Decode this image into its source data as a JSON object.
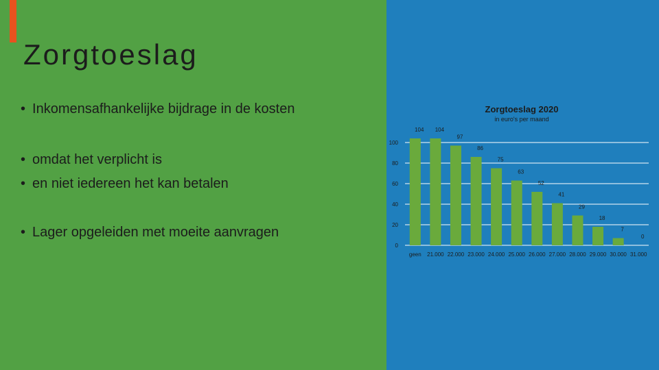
{
  "slide": {
    "title": "Zorgtoeslag",
    "bullets": [
      "Inkomensafhankelijke bijdrage in de kosten",
      "omdat het verplicht is",
      "en niet iedereen het kan betalen",
      "Lager opgeleiden met moeite aanvragen"
    ]
  },
  "colors": {
    "left_bg": "#52a144",
    "right_bg": "#1f7fbd",
    "accent": "#e8521f",
    "bars": "#6aaa3c",
    "grid": "#ffffff"
  },
  "chart_data": {
    "type": "bar",
    "title": "Zorgtoeslag 2020",
    "subtitle": "in euro's per maand",
    "categories": [
      "geen",
      "21.000",
      "22.000",
      "23.000",
      "24.000",
      "25.000",
      "26.000",
      "27.000",
      "28.000",
      "29.000",
      "30.000",
      "31.000"
    ],
    "values": [
      104,
      104,
      97,
      86,
      75,
      63,
      52,
      41,
      29,
      18,
      7,
      0
    ],
    "ylim": [
      0,
      100
    ],
    "yticks": [
      0,
      20,
      40,
      60,
      80,
      100
    ],
    "grid": true
  }
}
